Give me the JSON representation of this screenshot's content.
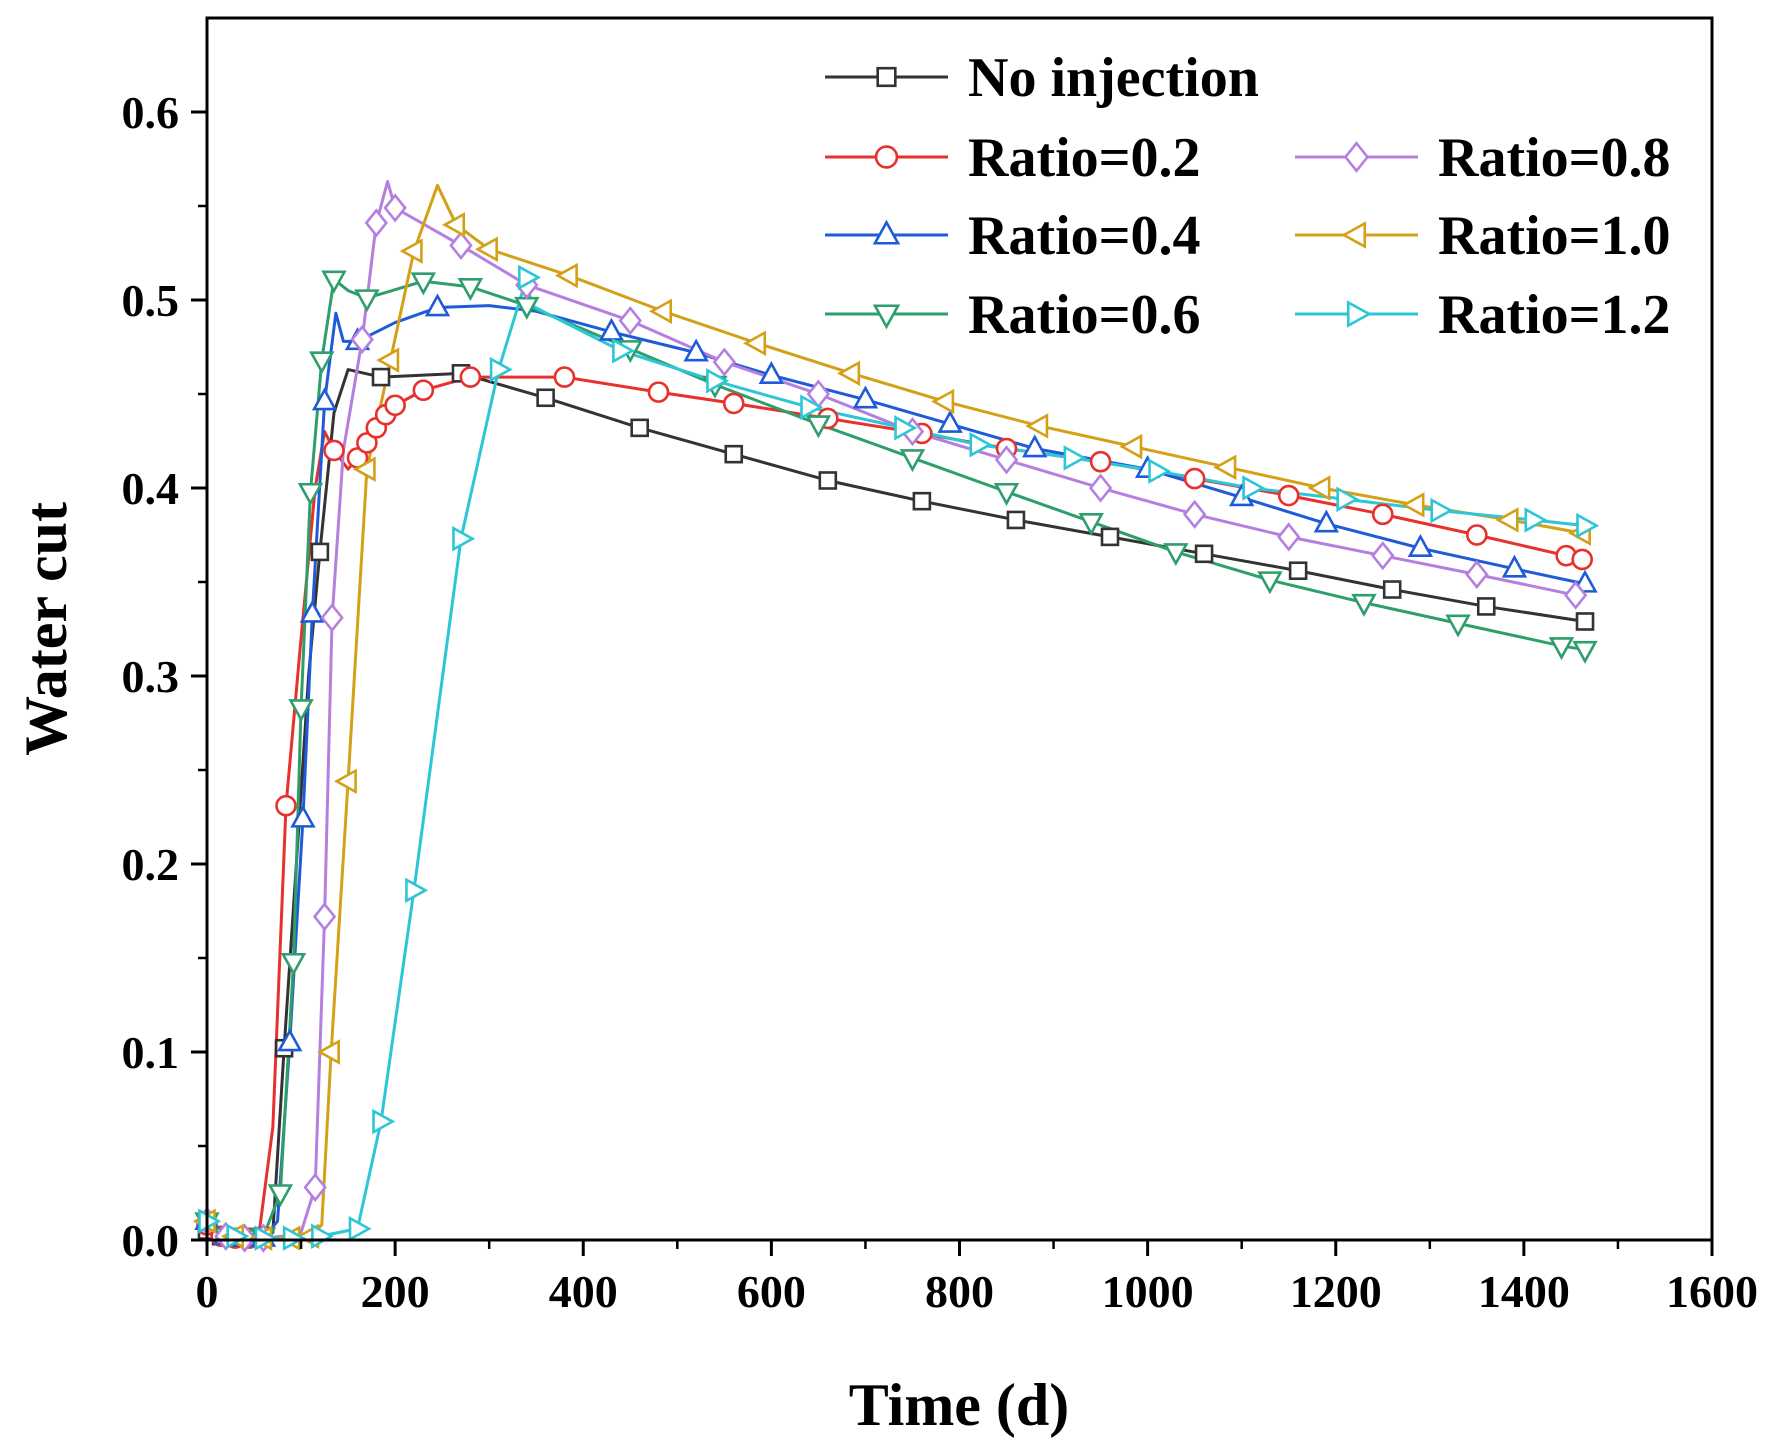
{
  "chart_data": {
    "type": "line",
    "title": "",
    "xlabel": "Time (d)",
    "ylabel": "Water cut",
    "xlim": [
      0,
      1600
    ],
    "ylim": [
      0,
      0.65
    ],
    "xticks": [
      0,
      200,
      400,
      600,
      800,
      1000,
      1200,
      1400,
      1600
    ],
    "xtick_labels": [
      "0",
      "200",
      "400",
      "600",
      "800",
      "1000",
      "1200",
      "1400",
      "1600"
    ],
    "yticks": [
      0.0,
      0.1,
      0.2,
      0.3,
      0.4,
      0.5,
      0.6
    ],
    "ytick_labels": [
      "0.0",
      "0.1",
      "0.2",
      "0.3",
      "0.4",
      "0.5",
      "0.6"
    ],
    "grid": false,
    "legend_position": "top-right",
    "series": [
      {
        "name": "No injection",
        "color": "#333333",
        "marker": "square",
        "x": [
          0,
          15,
          30,
          45,
          60,
          70,
          82,
          95,
          108,
          120,
          135,
          150,
          185,
          270,
          360,
          460,
          560,
          660,
          760,
          860,
          960,
          1060,
          1160,
          1260,
          1360,
          1465
        ],
        "y": [
          0.005,
          0.002,
          0.001,
          0.001,
          0.002,
          0.004,
          0.102,
          0.2,
          0.3,
          0.366,
          0.44,
          0.463,
          0.459,
          0.461,
          0.448,
          0.432,
          0.418,
          0.404,
          0.393,
          0.383,
          0.374,
          0.365,
          0.356,
          0.346,
          0.337,
          0.329
        ],
        "markers": [
          0,
          1,
          2,
          3,
          4,
          6,
          9,
          12,
          13,
          14,
          15,
          16,
          17,
          18,
          19,
          20,
          21,
          22,
          23,
          24,
          25
        ]
      },
      {
        "name": "Ratio=0.2",
        "color": "#e8302c",
        "marker": "circle",
        "x": [
          0,
          15,
          30,
          45,
          55,
          70,
          84,
          100,
          115,
          125,
          135,
          150,
          160,
          170,
          180,
          190,
          200,
          230,
          280,
          380,
          480,
          560,
          660,
          760,
          850,
          950,
          1050,
          1150,
          1250,
          1350,
          1445,
          1462
        ],
        "y": [
          0.008,
          0.002,
          0.001,
          0.001,
          0.002,
          0.06,
          0.231,
          0.32,
          0.4,
          0.43,
          0.42,
          0.41,
          0.416,
          0.424,
          0.432,
          0.439,
          0.444,
          0.452,
          0.459,
          0.459,
          0.451,
          0.445,
          0.437,
          0.429,
          0.421,
          0.414,
          0.405,
          0.396,
          0.386,
          0.375,
          0.364,
          0.362
        ],
        "markers": [
          0,
          1,
          2,
          3,
          6,
          10,
          12,
          13,
          14,
          15,
          16,
          17,
          18,
          19,
          20,
          21,
          22,
          23,
          24,
          25,
          26,
          27,
          28,
          29,
          30,
          31
        ]
      },
      {
        "name": "Ratio=0.4",
        "color": "#1f5bd8",
        "marker": "triangle-up",
        "x": [
          0,
          20,
          40,
          60,
          75,
          88,
          102,
          112,
          125,
          137,
          145,
          160,
          200,
          245,
          300,
          350,
          430,
          520,
          600,
          700,
          790,
          880,
          1000,
          1100,
          1190,
          1290,
          1390,
          1465
        ],
        "y": [
          0.01,
          0.002,
          0.001,
          0.001,
          0.01,
          0.105,
          0.224,
          0.333,
          0.446,
          0.493,
          0.478,
          0.478,
          0.488,
          0.496,
          0.497,
          0.494,
          0.483,
          0.472,
          0.46,
          0.447,
          0.434,
          0.421,
          0.41,
          0.395,
          0.381,
          0.368,
          0.357,
          0.349
        ],
        "markers": [
          0,
          1,
          2,
          3,
          5,
          6,
          7,
          8,
          11,
          13,
          16,
          17,
          18,
          19,
          20,
          21,
          22,
          23,
          24,
          25,
          26,
          27
        ]
      },
      {
        "name": "Ratio=0.6",
        "color": "#2e9e6b",
        "marker": "triangle-down",
        "x": [
          0,
          20,
          40,
          60,
          78,
          92,
          100,
          110,
          122,
          135,
          150,
          170,
          230,
          280,
          340,
          450,
          540,
          650,
          750,
          850,
          940,
          1030,
          1130,
          1230,
          1330,
          1440,
          1465
        ],
        "y": [
          0.01,
          0.002,
          0.001,
          0.002,
          0.025,
          0.148,
          0.283,
          0.398,
          0.468,
          0.511,
          0.505,
          0.501,
          0.51,
          0.507,
          0.497,
          0.474,
          0.455,
          0.434,
          0.416,
          0.398,
          0.382,
          0.366,
          0.351,
          0.339,
          0.328,
          0.316,
          0.314
        ],
        "markers": [
          0,
          1,
          2,
          3,
          4,
          5,
          6,
          7,
          8,
          9,
          11,
          12,
          13,
          14,
          15,
          16,
          17,
          18,
          19,
          20,
          21,
          22,
          23,
          24,
          25,
          26
        ]
      },
      {
        "name": "Ratio=0.8",
        "color": "#b57fe0",
        "marker": "diamond",
        "x": [
          0,
          20,
          40,
          60,
          80,
          100,
          115,
          125,
          133,
          145,
          165,
          180,
          192,
          200,
          270,
          340,
          450,
          550,
          650,
          750,
          850,
          950,
          1050,
          1150,
          1250,
          1350,
          1455
        ],
        "y": [
          0.01,
          0.002,
          0.001,
          0.001,
          0.002,
          0.004,
          0.028,
          0.172,
          0.331,
          0.42,
          0.479,
          0.541,
          0.563,
          0.549,
          0.529,
          0.508,
          0.489,
          0.467,
          0.45,
          0.43,
          0.415,
          0.4,
          0.386,
          0.374,
          0.364,
          0.354,
          0.343
        ],
        "markers": [
          0,
          1,
          2,
          3,
          6,
          7,
          8,
          10,
          11,
          13,
          14,
          15,
          16,
          17,
          18,
          19,
          20,
          21,
          22,
          23,
          24,
          25,
          26
        ]
      },
      {
        "name": "Ratio=1.0",
        "color": "#d4a017",
        "marker": "triangle-left",
        "x": [
          0,
          30,
          60,
          90,
          110,
          122,
          132,
          150,
          170,
          195,
          220,
          245,
          265,
          300,
          385,
          485,
          585,
          685,
          785,
          885,
          985,
          1085,
          1185,
          1285,
          1385,
          1462
        ],
        "y": [
          0.01,
          0.002,
          0.001,
          0.001,
          0.002,
          0.008,
          0.1,
          0.244,
          0.41,
          0.468,
          0.526,
          0.561,
          0.54,
          0.527,
          0.513,
          0.494,
          0.477,
          0.461,
          0.446,
          0.433,
          0.422,
          0.411,
          0.4,
          0.391,
          0.383,
          0.376
        ],
        "markers": [
          0,
          1,
          2,
          3,
          4,
          6,
          7,
          8,
          9,
          10,
          12,
          13,
          14,
          15,
          16,
          17,
          18,
          19,
          20,
          21,
          22,
          23,
          24,
          25
        ]
      },
      {
        "name": "Ratio=1.2",
        "color": "#2cc6d6",
        "marker": "triangle-right",
        "x": [
          0,
          30,
          60,
          90,
          120,
          160,
          185,
          220,
          270,
          310,
          340,
          345,
          440,
          540,
          640,
          740,
          820,
          920,
          1010,
          1110,
          1210,
          1310,
          1410,
          1465
        ],
        "y": [
          0.01,
          0.002,
          0.001,
          0.001,
          0.002,
          0.006,
          0.063,
          0.186,
          0.373,
          0.463,
          0.512,
          0.497,
          0.473,
          0.457,
          0.443,
          0.432,
          0.423,
          0.416,
          0.409,
          0.4,
          0.394,
          0.388,
          0.383,
          0.38
        ],
        "markers": [
          0,
          1,
          2,
          3,
          4,
          5,
          6,
          7,
          8,
          9,
          10,
          12,
          13,
          14,
          15,
          16,
          17,
          18,
          19,
          20,
          21,
          22,
          23
        ]
      }
    ]
  }
}
